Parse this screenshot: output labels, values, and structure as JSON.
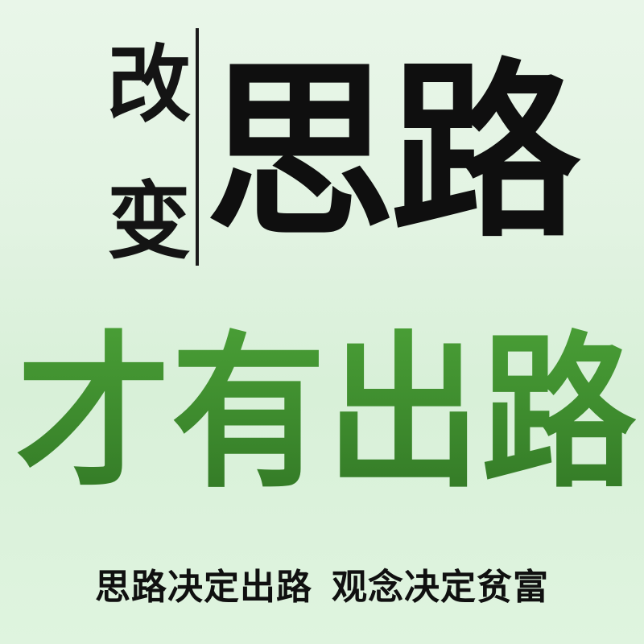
{
  "poster": {
    "small_text": [
      "改",
      "变"
    ],
    "big_black_text": [
      "思",
      "路"
    ],
    "green_text": [
      "才",
      "有",
      "出",
      "路"
    ],
    "slogan": {
      "left": "思路决定出路",
      "right": "观念决定贫富"
    }
  },
  "colors": {
    "background": "#e2f3e2",
    "black_text": "#0f0f0f",
    "green_text": "#3f8f2f"
  }
}
